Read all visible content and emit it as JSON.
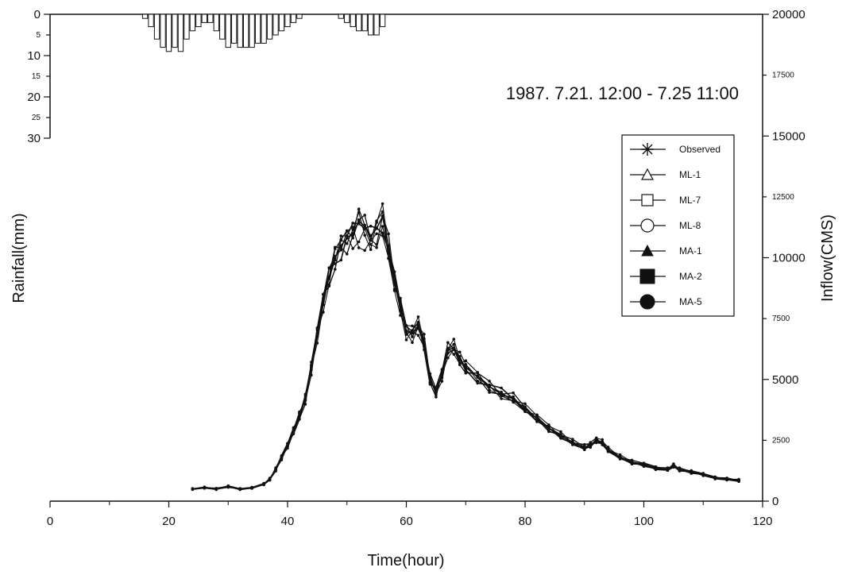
{
  "chart_data": {
    "type": "line",
    "annotation": "1987. 7.21. 12:00 - 7.25 11:00",
    "xlabel": "Time(hour)",
    "ylabel_left": "Rainfall(mm)",
    "ylabel_right": "Inflow(CMS)",
    "xlim": [
      0,
      120
    ],
    "x_ticks": [
      "0",
      "20",
      "40",
      "60",
      "80",
      "100",
      "120"
    ],
    "y_right_lim": [
      0,
      20000
    ],
    "y_right_ticks": [
      {
        "value": 0,
        "label": "0",
        "major": true
      },
      {
        "value": 2500,
        "label": "2500",
        "major": false
      },
      {
        "value": 5000,
        "label": "5000",
        "major": true
      },
      {
        "value": 7500,
        "label": "7500",
        "major": false
      },
      {
        "value": 10000,
        "label": "10000",
        "major": true
      },
      {
        "value": 12500,
        "label": "12500",
        "major": false
      },
      {
        "value": 15000,
        "label": "15000",
        "major": true
      },
      {
        "value": 17500,
        "label": "17500",
        "major": false
      },
      {
        "value": 20000,
        "label": "20000",
        "major": true
      }
    ],
    "y_left_ticks": [
      {
        "value": 0,
        "label": "0",
        "major": true
      },
      {
        "value": 5,
        "label": "5",
        "major": false
      },
      {
        "value": 10,
        "label": "10",
        "major": true
      },
      {
        "value": 15,
        "label": "15",
        "major": false
      },
      {
        "value": 20,
        "label": "20",
        "major": true
      },
      {
        "value": 25,
        "label": "25",
        "major": false
      },
      {
        "value": 30,
        "label": "30",
        "major": true
      }
    ],
    "rainfall": {
      "x": [
        16,
        17,
        18,
        19,
        20,
        21,
        22,
        23,
        24,
        25,
        26,
        27,
        28,
        29,
        30,
        31,
        32,
        33,
        34,
        35,
        36,
        37,
        38,
        39,
        40,
        41,
        42,
        43,
        44,
        45,
        46,
        47,
        48,
        49,
        50,
        51,
        52,
        53,
        54,
        55,
        56
      ],
      "values": [
        1,
        3,
        6,
        8,
        9,
        8,
        9,
        6,
        4,
        3,
        2,
        2,
        4,
        6,
        8,
        7,
        8,
        8,
        8,
        7,
        7,
        6,
        5,
        4,
        3,
        2,
        1,
        0,
        0,
        0,
        0,
        0,
        0,
        1,
        2,
        3,
        4,
        4,
        5,
        5,
        3
      ]
    },
    "legend": [
      "Observed",
      "ML-1",
      "ML-7",
      "ML-8",
      "MA-1",
      "MA-2",
      "MA-5"
    ],
    "series_hydrograph": {
      "x": [
        24,
        26,
        28,
        30,
        32,
        34,
        36,
        37,
        38,
        39,
        40,
        41,
        42,
        43,
        44,
        45,
        46,
        47,
        48,
        49,
        50,
        51,
        52,
        53,
        54,
        55,
        56,
        57,
        58,
        59,
        60,
        61,
        62,
        63,
        64,
        65,
        66,
        67,
        68,
        69,
        70,
        72,
        74,
        76,
        78,
        80,
        82,
        84,
        86,
        88,
        90,
        91,
        92,
        93,
        94,
        96,
        98,
        100,
        102,
        104,
        105,
        106,
        108,
        110,
        112,
        114,
        116
      ],
      "observed": [
        500,
        550,
        500,
        600,
        500,
        550,
        700,
        900,
        1300,
        1800,
        2300,
        2900,
        3500,
        4200,
        5500,
        6900,
        8200,
        9200,
        10000,
        10500,
        10800,
        11000,
        11500,
        11300,
        10900,
        11200,
        11700,
        10500,
        9000,
        8000,
        7000,
        6900,
        7200,
        6500,
        5000,
        4500,
        5200,
        6200,
        6300,
        5800,
        5500,
        5100,
        4700,
        4400,
        4200,
        3800,
        3400,
        3000,
        2700,
        2400,
        2200,
        2300,
        2500,
        2400,
        2100,
        1800,
        1600,
        1500,
        1350,
        1300,
        1450,
        1300,
        1200,
        1100,
        950,
        900,
        850
      ]
    }
  }
}
